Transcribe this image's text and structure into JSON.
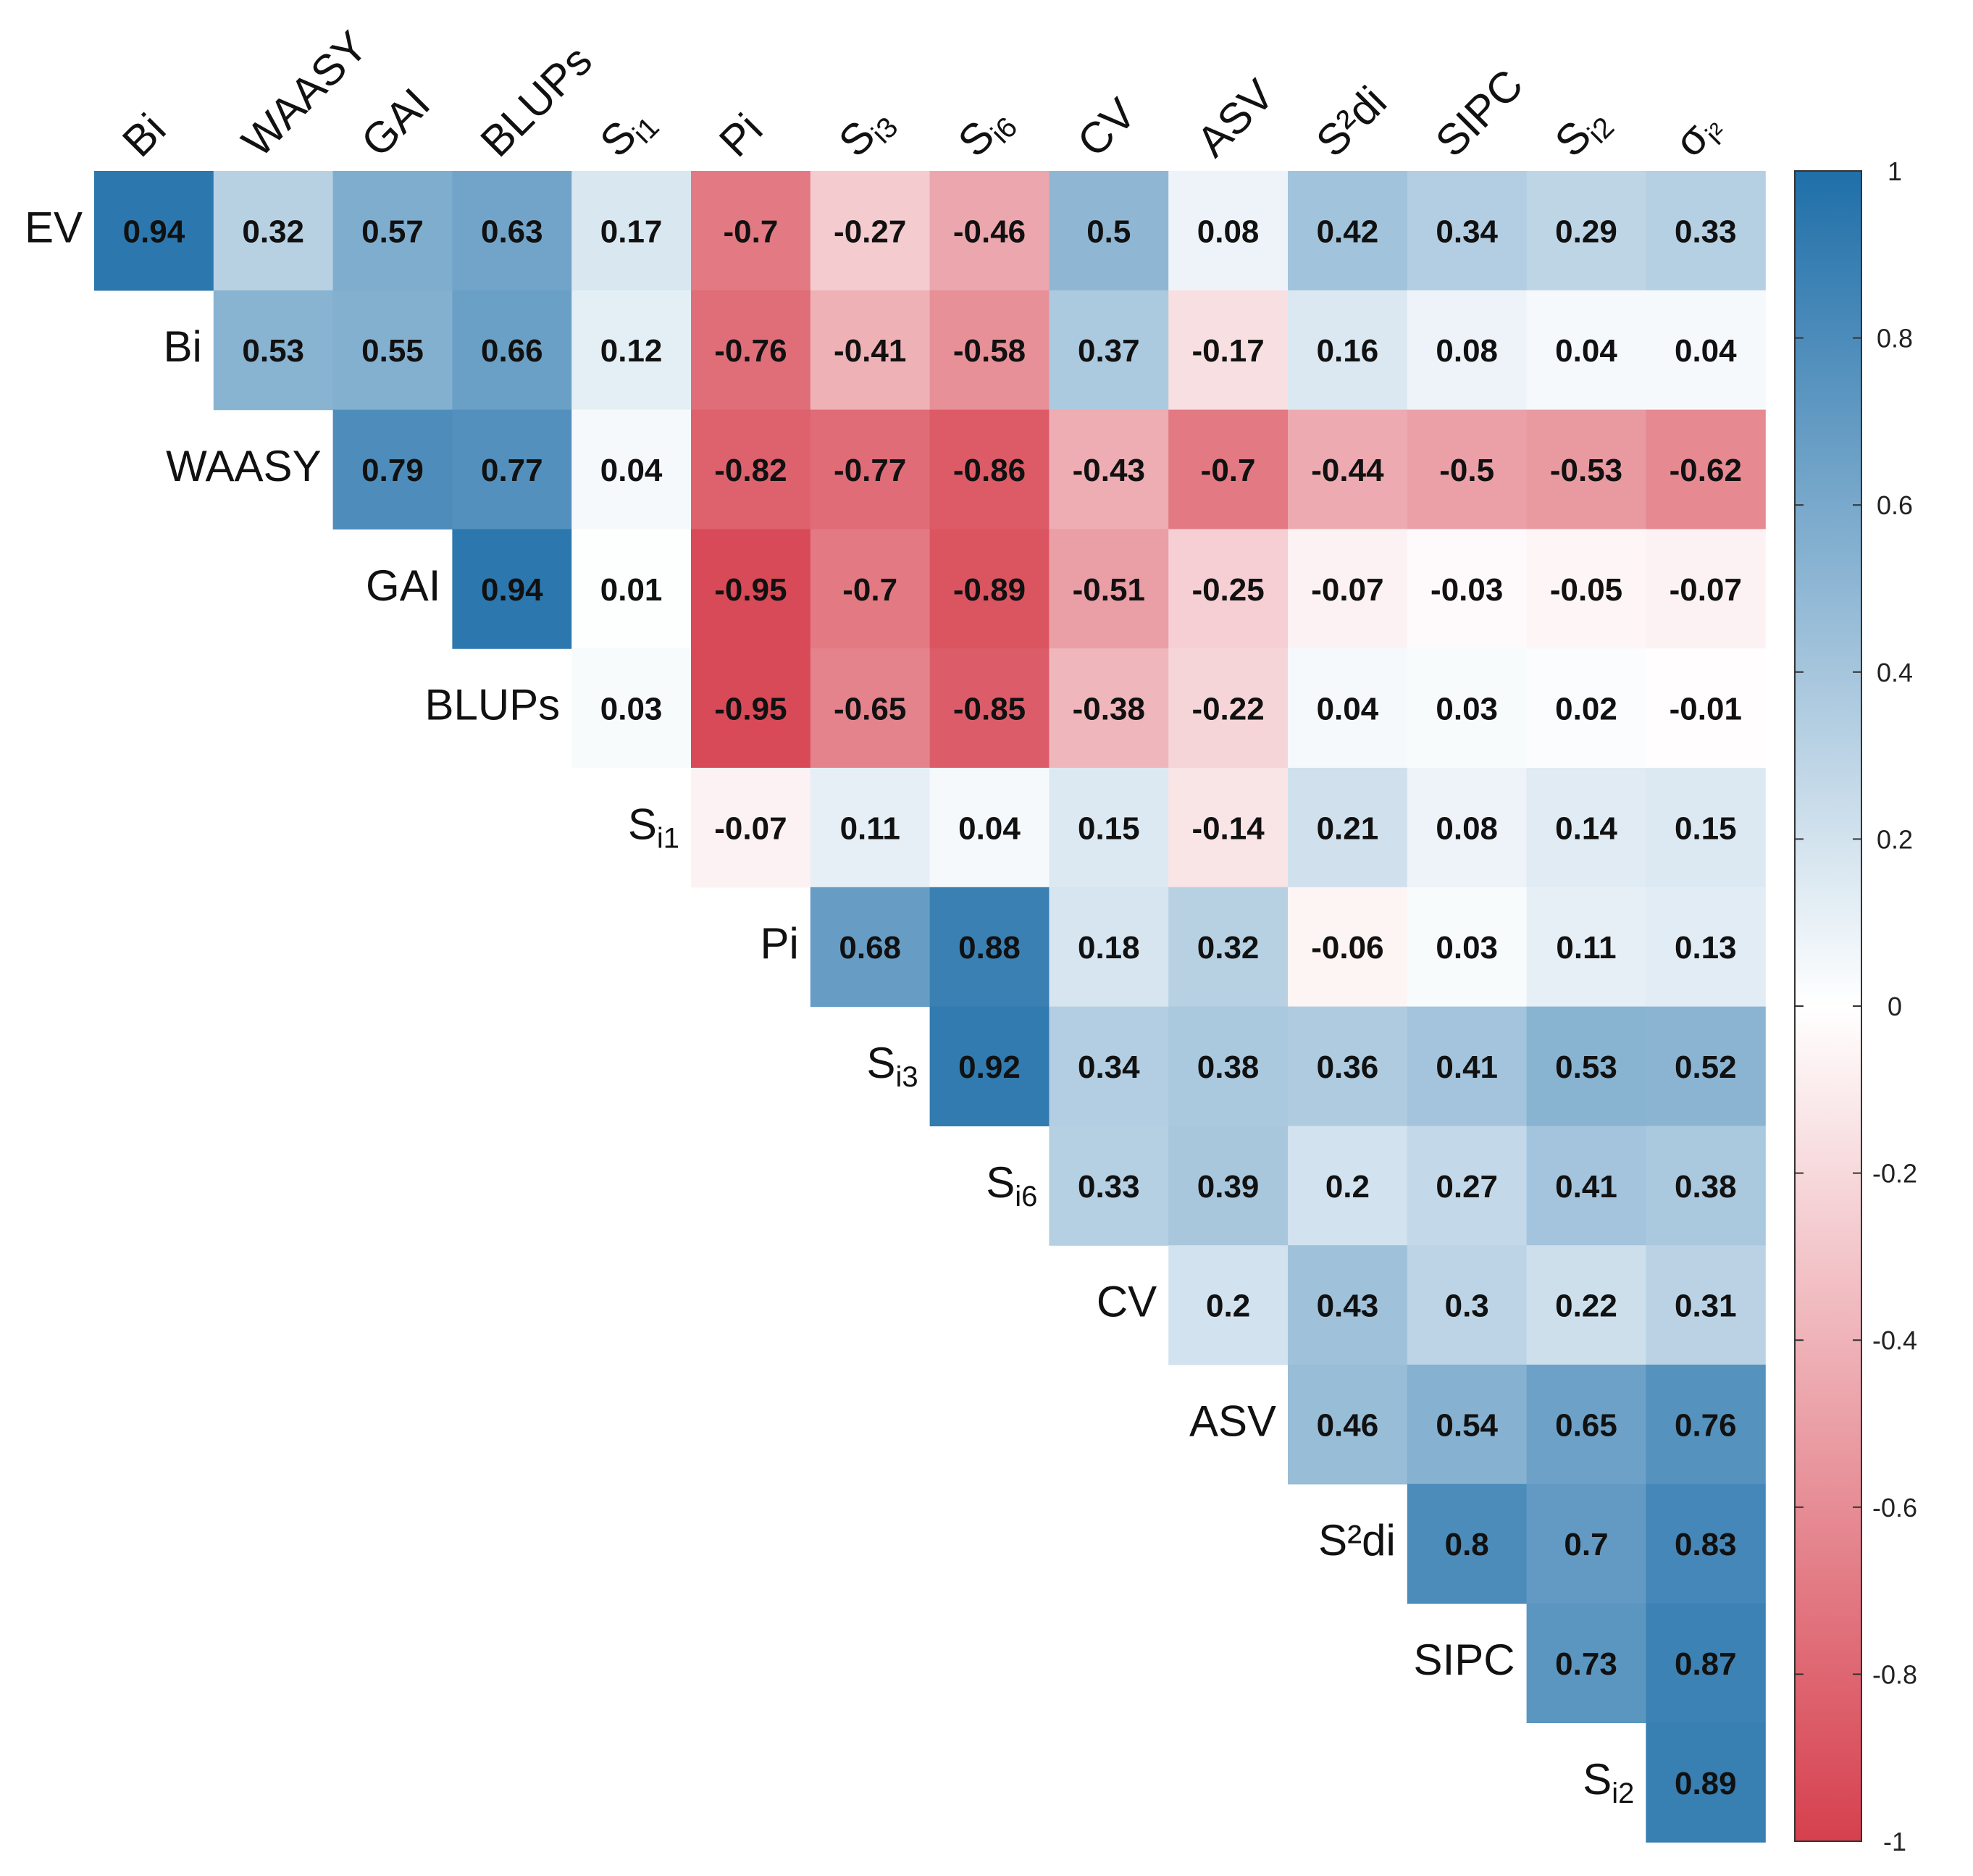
{
  "chart_data": {
    "type": "heatmap",
    "title": "",
    "subtype": "upper-triangular correlation matrix",
    "row_labels": [
      {
        "base": "EV",
        "sub": ""
      },
      {
        "base": "Bi",
        "sub": ""
      },
      {
        "base": "WAASY",
        "sub": ""
      },
      {
        "base": "GAI",
        "sub": ""
      },
      {
        "base": "BLUPs",
        "sub": ""
      },
      {
        "base": "S",
        "sub": "i1"
      },
      {
        "base": "Pi",
        "sub": ""
      },
      {
        "base": "S",
        "sub": "i3"
      },
      {
        "base": "S",
        "sub": "i6"
      },
      {
        "base": "CV",
        "sub": ""
      },
      {
        "base": "ASV",
        "sub": ""
      },
      {
        "base": "S²di",
        "sub": ""
      },
      {
        "base": "SIPC",
        "sub": ""
      },
      {
        "base": "S",
        "sub": "i2"
      }
    ],
    "col_labels": [
      {
        "base": "Bi",
        "sub": ""
      },
      {
        "base": "WAASY",
        "sub": ""
      },
      {
        "base": "GAI",
        "sub": ""
      },
      {
        "base": "BLUPs",
        "sub": ""
      },
      {
        "base": "S",
        "sub": "i1"
      },
      {
        "base": "Pi",
        "sub": ""
      },
      {
        "base": "S",
        "sub": "i3"
      },
      {
        "base": "S",
        "sub": "i6"
      },
      {
        "base": "CV",
        "sub": ""
      },
      {
        "base": "ASV",
        "sub": ""
      },
      {
        "base": "S²di",
        "sub": ""
      },
      {
        "base": "SIPC",
        "sub": ""
      },
      {
        "base": "S",
        "sub": "i2"
      },
      {
        "base": "σ",
        "sub": "i²"
      }
    ],
    "values": [
      [
        0.94,
        0.32,
        0.57,
        0.63,
        0.17,
        -0.7,
        -0.27,
        -0.46,
        0.5,
        0.08,
        0.42,
        0.34,
        0.29,
        0.33
      ],
      [
        null,
        0.53,
        0.55,
        0.66,
        0.12,
        -0.76,
        -0.41,
        -0.58,
        0.37,
        -0.17,
        0.16,
        0.08,
        0.04,
        0.04
      ],
      [
        null,
        null,
        0.79,
        0.77,
        0.04,
        -0.82,
        -0.77,
        -0.86,
        -0.43,
        -0.7,
        -0.44,
        -0.5,
        -0.53,
        -0.62
      ],
      [
        null,
        null,
        null,
        0.94,
        0.01,
        -0.95,
        -0.7,
        -0.89,
        -0.51,
        -0.25,
        -0.07,
        -0.03,
        -0.05,
        -0.07
      ],
      [
        null,
        null,
        null,
        null,
        0.03,
        -0.95,
        -0.65,
        -0.85,
        -0.38,
        -0.22,
        0.04,
        0.03,
        0.02,
        -0.01
      ],
      [
        null,
        null,
        null,
        null,
        null,
        -0.07,
        0.11,
        0.04,
        0.15,
        -0.14,
        0.21,
        0.08,
        0.14,
        0.15
      ],
      [
        null,
        null,
        null,
        null,
        null,
        null,
        0.68,
        0.88,
        0.18,
        0.32,
        -0.06,
        0.03,
        0.11,
        0.13
      ],
      [
        null,
        null,
        null,
        null,
        null,
        null,
        null,
        0.92,
        0.34,
        0.38,
        0.36,
        0.41,
        0.53,
        0.52
      ],
      [
        null,
        null,
        null,
        null,
        null,
        null,
        null,
        null,
        0.33,
        0.39,
        0.2,
        0.27,
        0.41,
        0.38
      ],
      [
        null,
        null,
        null,
        null,
        null,
        null,
        null,
        null,
        null,
        0.2,
        0.43,
        0.3,
        0.22,
        0.31
      ],
      [
        null,
        null,
        null,
        null,
        null,
        null,
        null,
        null,
        null,
        null,
        0.46,
        0.54,
        0.65,
        0.76
      ],
      [
        null,
        null,
        null,
        null,
        null,
        null,
        null,
        null,
        null,
        null,
        null,
        0.8,
        0.7,
        0.83
      ],
      [
        null,
        null,
        null,
        null,
        null,
        null,
        null,
        null,
        null,
        null,
        null,
        null,
        0.73,
        0.87
      ],
      [
        null,
        null,
        null,
        null,
        null,
        null,
        null,
        null,
        null,
        null,
        null,
        null,
        null,
        0.89
      ]
    ],
    "colorbar": {
      "range": [
        -1,
        1
      ],
      "ticks": [
        1,
        0.8,
        0.6,
        0.4,
        0.2,
        0,
        -0.2,
        -0.4,
        -0.6,
        -0.8,
        -1
      ],
      "tick_labels": [
        "1",
        "0.8",
        "0.6",
        "0.4",
        "0.2",
        "0",
        "-0.2",
        "-0.4",
        "-0.6",
        "-0.8",
        "-1"
      ],
      "low_color": "#d6404e",
      "mid_color": "#ffffff",
      "high_color": "#1f6fa9"
    }
  }
}
